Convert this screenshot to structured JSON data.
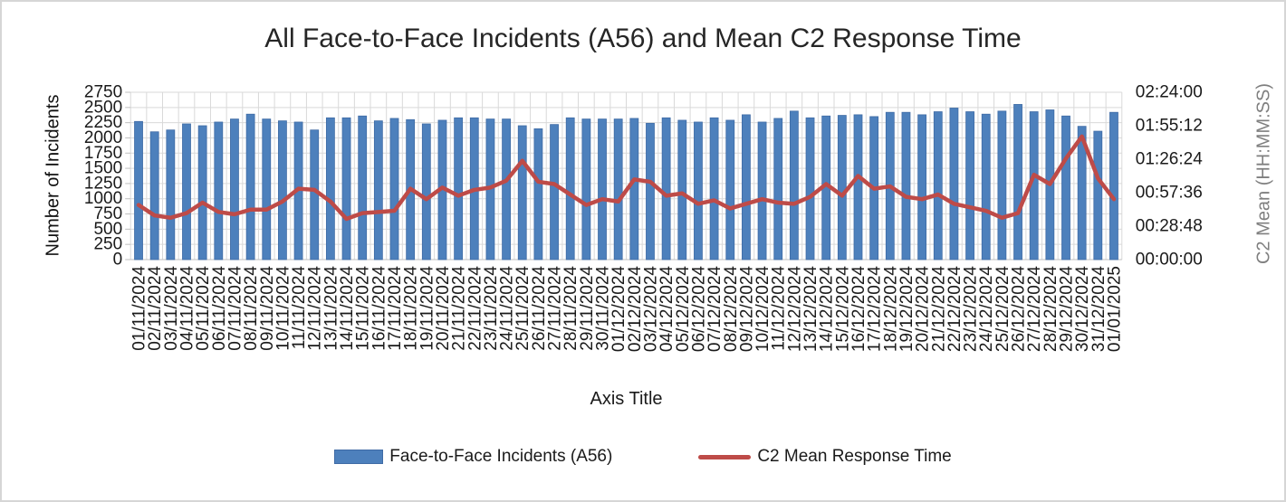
{
  "chart_data": {
    "type": "combo",
    "title": "All Face-to-Face Incidents (A56) and Mean C2 Response Time",
    "xlabel": "Axis Title",
    "ylabel_left": "Number of Incidents",
    "ylabel_right": "C2 Mean (HH:MM:SS)",
    "grid": true,
    "legend_position": "bottom",
    "left_axis": {
      "min": 0,
      "max": 2750,
      "step": 250,
      "tick_values": [
        0,
        250,
        500,
        750,
        1000,
        1250,
        1500,
        1750,
        2000,
        2250,
        2500,
        2750
      ]
    },
    "right_axis": {
      "min_seconds": 0,
      "max_seconds": 8640,
      "step_seconds": 1728,
      "tick_labels": [
        "00:00:00",
        "00:28:48",
        "00:57:36",
        "01:26:24",
        "01:55:12",
        "02:24:00"
      ]
    },
    "categories": [
      "01/11/2024",
      "02/11/2024",
      "03/11/2024",
      "04/11/2024",
      "05/11/2024",
      "06/11/2024",
      "07/11/2024",
      "08/11/2024",
      "09/11/2024",
      "10/11/2024",
      "11/11/2024",
      "12/11/2024",
      "13/11/2024",
      "14/11/2024",
      "15/11/2024",
      "16/11/2024",
      "17/11/2024",
      "18/11/2024",
      "19/11/2024",
      "20/11/2024",
      "21/11/2024",
      "22/11/2024",
      "23/11/2024",
      "24/11/2024",
      "25/11/2024",
      "26/11/2024",
      "27/11/2024",
      "28/11/2024",
      "29/11/2024",
      "30/11/2024",
      "01/12/2024",
      "02/12/2024",
      "03/12/2024",
      "04/12/2024",
      "05/12/2024",
      "06/12/2024",
      "07/12/2024",
      "08/12/2024",
      "09/12/2024",
      "10/12/2024",
      "11/12/2024",
      "12/12/2024",
      "13/12/2024",
      "14/12/2024",
      "15/12/2024",
      "16/12/2024",
      "17/12/2024",
      "18/12/2024",
      "19/12/2024",
      "20/12/2024",
      "21/12/2024",
      "22/12/2024",
      "23/12/2024",
      "24/12/2024",
      "25/12/2024",
      "26/12/2024",
      "27/12/2024",
      "28/12/2024",
      "29/12/2024",
      "30/12/2024",
      "31/12/2024",
      "01/01/2025"
    ],
    "series": [
      {
        "name": "Face-to-Face Incidents (A56)",
        "type": "bar",
        "axis": "left",
        "color": "#4d80bc",
        "border_color": "#3f6ba5",
        "values": [
          2270,
          2100,
          2130,
          2230,
          2200,
          2260,
          2310,
          2390,
          2310,
          2280,
          2260,
          2130,
          2330,
          2330,
          2360,
          2280,
          2320,
          2300,
          2230,
          2290,
          2330,
          2330,
          2310,
          2310,
          2200,
          2150,
          2220,
          2330,
          2310,
          2310,
          2310,
          2320,
          2240,
          2330,
          2290,
          2260,
          2330,
          2290,
          2380,
          2260,
          2320,
          2440,
          2330,
          2360,
          2370,
          2380,
          2350,
          2420,
          2420,
          2380,
          2430,
          2490,
          2430,
          2390,
          2440,
          2550,
          2430,
          2460,
          2360,
          2190,
          2110,
          2420
        ]
      },
      {
        "name": "C2 Mean Response Time",
        "type": "line",
        "axis": "right",
        "color": "#be4b48",
        "values_seconds": [
          2820,
          2280,
          2160,
          2400,
          2940,
          2460,
          2340,
          2580,
          2580,
          3000,
          3660,
          3600,
          3000,
          2100,
          2400,
          2460,
          2520,
          3660,
          3120,
          3720,
          3300,
          3600,
          3720,
          4080,
          5100,
          4020,
          3900,
          3360,
          2820,
          3120,
          3000,
          4140,
          4020,
          3300,
          3420,
          2880,
          3060,
          2640,
          2880,
          3120,
          2940,
          2880,
          3240,
          3900,
          3300,
          4320,
          3660,
          3780,
          3240,
          3120,
          3360,
          2880,
          2700,
          2520,
          2160,
          2400,
          4380,
          3900,
          5220,
          6360,
          4200,
          3120
        ]
      }
    ],
    "colors": {
      "gridline": "#d9d9d9",
      "axis_line": "#bfbfbf",
      "tick_text": "#1a1a1a",
      "title_text": "#262626",
      "right_axis_title_text": "#7f7f7f"
    }
  }
}
